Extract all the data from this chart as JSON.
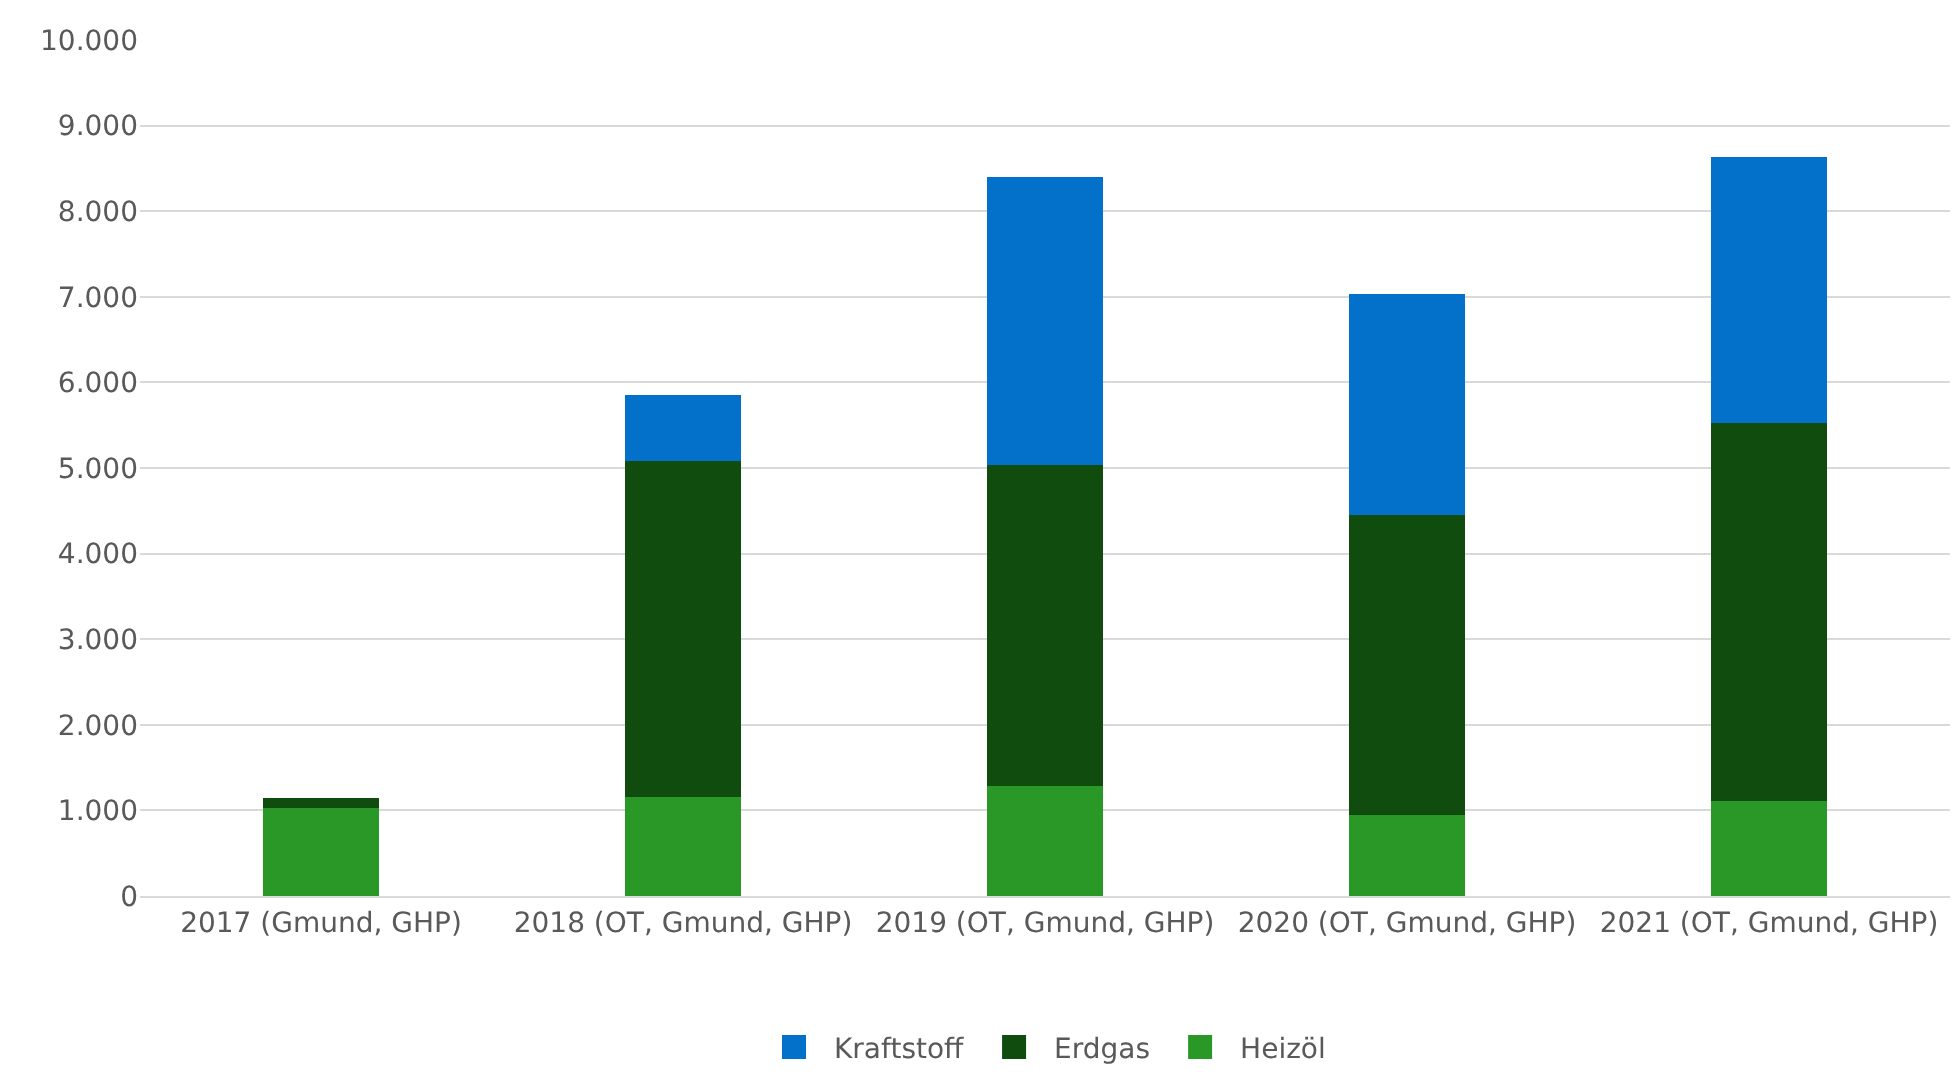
{
  "chart_data": {
    "type": "bar",
    "stacked": true,
    "categories": [
      "2017 (Gmund, GHP)",
      "2018 (OT, Gmund, GHP)",
      "2019 (OT, Gmund, GHP)",
      "2020 (OT, Gmund, GHP)",
      "2021 (OT, Gmund, GHP)"
    ],
    "series": [
      {
        "name": "Heizöl",
        "color": "#2a9826",
        "values": [
          1030,
          1160,
          1280,
          950,
          1110
        ]
      },
      {
        "name": "Erdgas",
        "color": "#0f4c0e",
        "values": [
          110,
          3920,
          3750,
          3500,
          4410
        ]
      },
      {
        "name": "Kraftstoff",
        "color": "#0370ca",
        "values": [
          0,
          770,
          3370,
          2580,
          3110
        ]
      }
    ],
    "ylim": [
      0,
      10000
    ],
    "yticks": [
      {
        "value": 0,
        "label": "0"
      },
      {
        "value": 1000,
        "label": "1.000"
      },
      {
        "value": 2000,
        "label": "2.000"
      },
      {
        "value": 3000,
        "label": "3.000"
      },
      {
        "value": 4000,
        "label": "4.000"
      },
      {
        "value": 5000,
        "label": "5.000"
      },
      {
        "value": 6000,
        "label": "6.000"
      },
      {
        "value": 7000,
        "label": "7.000"
      },
      {
        "value": 8000,
        "label": "8.000"
      },
      {
        "value": 9000,
        "label": "9.000"
      },
      {
        "value": 10000,
        "label": "10.000"
      }
    ],
    "grid": "y",
    "legend": "bottom"
  }
}
